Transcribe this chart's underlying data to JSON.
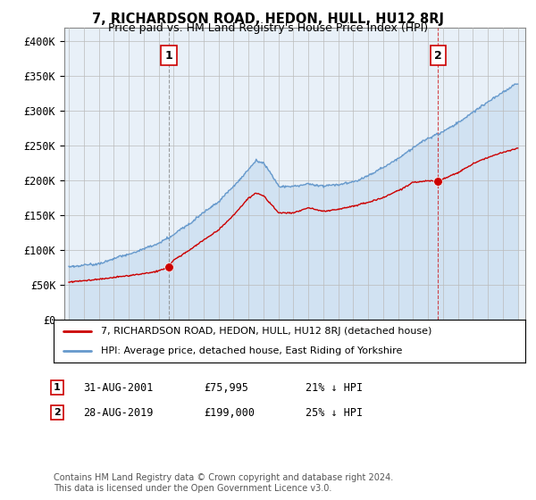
{
  "title": "7, RICHARDSON ROAD, HEDON, HULL, HU12 8RJ",
  "subtitle": "Price paid vs. HM Land Registry's House Price Index (HPI)",
  "ylabel_ticks": [
    "£0",
    "£50K",
    "£100K",
    "£150K",
    "£200K",
    "£250K",
    "£300K",
    "£350K",
    "£400K"
  ],
  "ytick_vals": [
    0,
    50000,
    100000,
    150000,
    200000,
    250000,
    300000,
    350000,
    400000
  ],
  "ylim": [
    0,
    420000
  ],
  "xlim_start": 1994.7,
  "xlim_end": 2025.5,
  "sale1_x": 2001.67,
  "sale1_y": 75995,
  "sale2_x": 2019.67,
  "sale2_y": 199000,
  "red_color": "#cc0000",
  "blue_color": "#6699cc",
  "blue_fill": "#ddeeff",
  "legend_line1": "7, RICHARDSON ROAD, HEDON, HULL, HU12 8RJ (detached house)",
  "legend_line2": "HPI: Average price, detached house, East Riding of Yorkshire",
  "annotation1_date": "31-AUG-2001",
  "annotation1_price": "£75,995",
  "annotation1_hpi": "21% ↓ HPI",
  "annotation2_date": "28-AUG-2019",
  "annotation2_price": "£199,000",
  "annotation2_hpi": "25% ↓ HPI",
  "footer": "Contains HM Land Registry data © Crown copyright and database right 2024.\nThis data is licensed under the Open Government Licence v3.0.",
  "background_color": "#ffffff",
  "grid_color": "#bbbbbb"
}
